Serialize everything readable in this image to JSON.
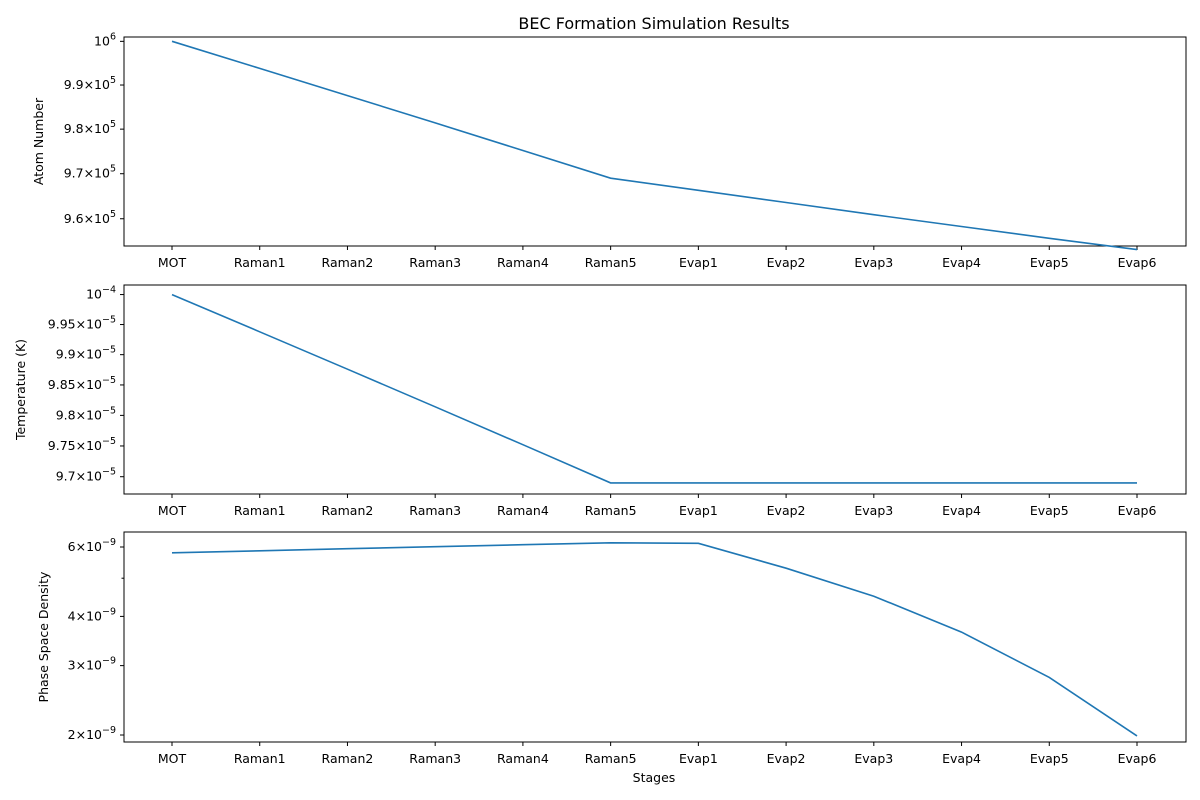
{
  "title": "BEC Formation Simulation Results",
  "xlabel": "Stages",
  "categories": [
    "MOT",
    "Raman1",
    "Raman2",
    "Raman3",
    "Raman4",
    "Raman5",
    "Evap1",
    "Evap2",
    "Evap3",
    "Evap4",
    "Evap5",
    "Evap6"
  ],
  "chart_data": [
    {
      "type": "line",
      "ylabel": "Atom Number",
      "yscale": "log",
      "series": [
        {
          "values": [
            1000000,
            993800,
            987600,
            981400,
            975200,
            969000,
            966300,
            963600,
            960900,
            958300,
            955700,
            953200
          ],
          "color": "#1f77b4"
        }
      ],
      "ylim": [
        954000,
        1001000
      ],
      "yticks": [
        {
          "value": 1000000,
          "mant": "",
          "exp": "6"
        },
        {
          "value": 990000,
          "mant": "9.9",
          "exp": "5"
        },
        {
          "value": 980000,
          "mant": "9.8",
          "exp": "5"
        },
        {
          "value": 970000,
          "mant": "9.7",
          "exp": "5"
        },
        {
          "value": 960000,
          "mant": "9.6",
          "exp": "5"
        }
      ],
      "grid": false
    },
    {
      "type": "line",
      "ylabel": "Temperature (K)",
      "yscale": "log",
      "series": [
        {
          "values": [
            0.0001,
            9.938e-05,
            9.876e-05,
            9.814e-05,
            9.752e-05,
            9.69e-05,
            9.69e-05,
            9.69e-05,
            9.69e-05,
            9.69e-05,
            9.69e-05,
            9.69e-05
          ],
          "color": "#1f77b4"
        }
      ],
      "ylim": [
        9.672e-05,
        0.00010016
      ],
      "yticks": [
        {
          "value": 0.0001,
          "mant": "",
          "exp": "−4"
        },
        {
          "value": 9.95e-05,
          "mant": "9.95",
          "exp": "−5"
        },
        {
          "value": 9.9e-05,
          "mant": "9.9",
          "exp": "−5"
        },
        {
          "value": 9.85e-05,
          "mant": "9.85",
          "exp": "−5"
        },
        {
          "value": 9.8e-05,
          "mant": "9.8",
          "exp": "−5"
        },
        {
          "value": 9.75e-05,
          "mant": "9.75",
          "exp": "−5"
        },
        {
          "value": 9.7e-05,
          "mant": "9.7",
          "exp": "−5"
        }
      ],
      "grid": false
    },
    {
      "type": "line",
      "ylabel": "Phase Space Density",
      "yscale": "log",
      "series": [
        {
          "values": [
            5.8e-09,
            5.87e-09,
            5.94e-09,
            6.01e-09,
            6.08e-09,
            6.15e-09,
            6.13e-09,
            5.3e-09,
            4.5e-09,
            3.65e-09,
            2.8e-09,
            1.99e-09
          ],
          "color": "#1f77b4"
        }
      ],
      "ylim": [
        1.92e-09,
        6.55e-09
      ],
      "yticks": [
        {
          "value": 6e-09,
          "mant": "6",
          "exp": "−9"
        },
        {
          "value": 4e-09,
          "mant": "4",
          "exp": "−9"
        },
        {
          "value": 3e-09,
          "mant": "3",
          "exp": "−9"
        },
        {
          "value": 2e-09,
          "mant": "2",
          "exp": "−9"
        }
      ],
      "yticks_minor": [
        5e-09
      ],
      "grid": false
    }
  ]
}
